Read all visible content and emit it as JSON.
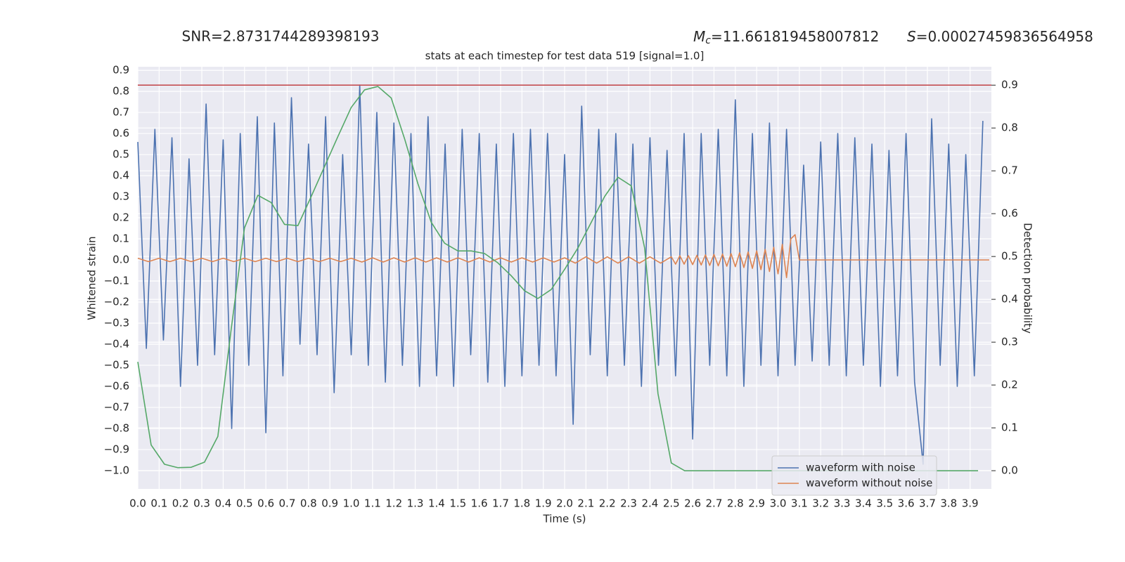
{
  "chart_data": {
    "type": "line",
    "title": "stats at each timestep for test data 519 [signal=1.0]",
    "annotations": [
      {
        "text": "SNR=2.8731744289398193"
      },
      {
        "symbol": "M",
        "sub": "c",
        "text": "=11.661819458007812"
      },
      {
        "symbol": "S",
        "text": "=0.00027459836564958"
      }
    ],
    "xlabel": "Time (s)",
    "ylabel": "Whitened strain",
    "y2label": "Detection probability",
    "xlim": [
      0,
      4.0
    ],
    "ylim": [
      -1.087,
      0.917
    ],
    "y2lim": [
      -0.0426,
      0.943
    ],
    "xticks": [
      {
        "value": 0,
        "label": "0.0"
      },
      0.1,
      0.2,
      0.3,
      0.4,
      0.5,
      0.6,
      0.7,
      0.8,
      0.9,
      {
        "value": 1,
        "label": "1.0"
      },
      1.1,
      1.2,
      1.3,
      1.4,
      1.5,
      1.6,
      1.7,
      1.8,
      1.9,
      {
        "value": 2,
        "label": "2.0"
      },
      2.1,
      2.2,
      2.3,
      2.4,
      2.5,
      2.6,
      2.7,
      2.8,
      2.9,
      {
        "value": 3,
        "label": "3.0"
      },
      3.1,
      3.2,
      3.3,
      3.4,
      3.5,
      3.6,
      3.7,
      3.8,
      3.9
    ],
    "yticks": [
      {
        "value": -1,
        "label": "−1.0"
      },
      {
        "value": -0.9,
        "label": "−0.9"
      },
      {
        "value": -0.8,
        "label": "−0.8"
      },
      {
        "value": -0.7,
        "label": "−0.7"
      },
      {
        "value": -0.6,
        "label": "−0.6"
      },
      {
        "value": -0.5,
        "label": "−0.5"
      },
      {
        "value": -0.4,
        "label": "−0.4"
      },
      {
        "value": -0.3,
        "label": "−0.3"
      },
      {
        "value": -0.2,
        "label": "−0.2"
      },
      {
        "value": -0.1,
        "label": "−0.1"
      },
      {
        "value": 0,
        "label": "0.0"
      },
      0.1,
      0.2,
      0.3,
      0.4,
      0.5,
      0.6,
      0.7,
      0.8,
      0.9
    ],
    "y2ticks": [
      {
        "value": 0,
        "label": "0.0"
      },
      0.1,
      0.2,
      0.3,
      0.4,
      0.5,
      0.6,
      0.7,
      0.8,
      0.9
    ],
    "grid": true,
    "legend": "lower right",
    "threshold": {
      "value": 0.9,
      "axis": "y2",
      "color": "#c44e52"
    },
    "series": [
      {
        "name": "waveform with noise",
        "color": "#4c72b0",
        "x": [
          0,
          0.04,
          0.08,
          0.12,
          0.16,
          0.2,
          0.24,
          0.28,
          0.32,
          0.36,
          0.4,
          0.44,
          0.48,
          0.52,
          0.56,
          0.6,
          0.64,
          0.68,
          0.72,
          0.76,
          0.8,
          0.84,
          0.88,
          0.92,
          0.96,
          1,
          1.04,
          1.08,
          1.12,
          1.16,
          1.2,
          1.24,
          1.28,
          1.32,
          1.36,
          1.4,
          1.44,
          1.48,
          1.52,
          1.56,
          1.6,
          1.64,
          1.68,
          1.72,
          1.76,
          1.8,
          1.84,
          1.88,
          1.92,
          1.96,
          2,
          2.04,
          2.08,
          2.12,
          2.16,
          2.2,
          2.24,
          2.28,
          2.32,
          2.36,
          2.4,
          2.44,
          2.48,
          2.52,
          2.56,
          2.6,
          2.64,
          2.68,
          2.72,
          2.76,
          2.8,
          2.84,
          2.88,
          2.92,
          2.96,
          3,
          3.04,
          3.08,
          3.12,
          3.16,
          3.2,
          3.24,
          3.28,
          3.32,
          3.36,
          3.4,
          3.44,
          3.48,
          3.52,
          3.56,
          3.6,
          3.64,
          3.68,
          3.72,
          3.76,
          3.8,
          3.84,
          3.88,
          3.92,
          3.96
        ],
        "values": [
          0.56,
          -0.42,
          0.62,
          -0.38,
          0.58,
          -0.6,
          0.48,
          -0.5,
          0.74,
          -0.45,
          0.57,
          -0.8,
          0.6,
          -0.5,
          0.68,
          -0.82,
          0.65,
          -0.55,
          0.77,
          -0.4,
          0.55,
          -0.45,
          0.68,
          -0.63,
          0.5,
          -0.45,
          0.83,
          -0.5,
          0.7,
          -0.58,
          0.65,
          -0.5,
          0.6,
          -0.6,
          0.68,
          -0.55,
          0.55,
          -0.6,
          0.62,
          -0.45,
          0.6,
          -0.58,
          0.55,
          -0.6,
          0.6,
          -0.55,
          0.62,
          -0.5,
          0.6,
          -0.55,
          0.5,
          -0.78,
          0.73,
          -0.45,
          0.62,
          -0.55,
          0.6,
          -0.5,
          0.55,
          -0.6,
          0.58,
          -0.5,
          0.52,
          -0.55,
          0.6,
          -0.85,
          0.6,
          -0.5,
          0.62,
          -0.55,
          0.76,
          -0.6,
          0.6,
          -0.5,
          0.65,
          -0.55,
          0.62,
          -0.5,
          0.45,
          -0.48,
          0.56,
          -0.5,
          0.6,
          -0.55,
          0.58,
          -0.5,
          0.55,
          -0.6,
          0.52,
          -0.55,
          0.6,
          -0.58,
          -0.97,
          0.67,
          -0.5,
          0.55,
          -0.6,
          0.5,
          -0.55,
          0.66
        ]
      },
      {
        "name": "waveform without noise",
        "color": "#dd8452",
        "x": [
          0,
          0.05,
          0.1,
          0.15,
          0.2,
          0.25,
          0.3,
          0.35,
          0.4,
          0.45,
          0.5,
          0.55,
          0.6,
          0.65,
          0.7,
          0.75,
          0.8,
          0.85,
          0.9,
          0.95,
          1,
          1.05,
          1.1,
          1.15,
          1.2,
          1.25,
          1.3,
          1.35,
          1.4,
          1.45,
          1.5,
          1.55,
          1.6,
          1.65,
          1.7,
          1.75,
          1.8,
          1.85,
          1.9,
          1.95,
          2,
          2.05,
          2.1,
          2.15,
          2.2,
          2.25,
          2.3,
          2.35,
          2.4,
          2.45,
          2.5,
          2.52,
          2.54,
          2.56,
          2.58,
          2.6,
          2.62,
          2.64,
          2.66,
          2.68,
          2.7,
          2.72,
          2.74,
          2.76,
          2.78,
          2.8,
          2.82,
          2.84,
          2.86,
          2.88,
          2.9,
          2.92,
          2.94,
          2.96,
          2.98,
          3,
          3.02,
          3.04,
          3.06,
          3.08,
          3.1,
          3.99
        ],
        "values": [
          0.008,
          -0.008,
          0.008,
          -0.008,
          0.008,
          -0.008,
          0.008,
          -0.008,
          0.008,
          -0.008,
          0.008,
          -0.008,
          0.008,
          -0.008,
          0.008,
          -0.008,
          0.008,
          -0.008,
          0.008,
          -0.008,
          0.008,
          -0.01,
          0.01,
          -0.01,
          0.01,
          -0.01,
          0.01,
          -0.01,
          0.01,
          -0.01,
          0.01,
          -0.01,
          0.01,
          -0.01,
          0.01,
          -0.01,
          0.01,
          -0.01,
          0.01,
          -0.01,
          0.01,
          -0.015,
          0.015,
          -0.015,
          0.015,
          -0.015,
          0.015,
          -0.015,
          0.015,
          -0.015,
          0.015,
          -0.02,
          0.02,
          -0.02,
          0.02,
          -0.022,
          0.022,
          -0.024,
          0.024,
          -0.026,
          0.026,
          -0.028,
          0.028,
          -0.03,
          0.03,
          -0.032,
          0.034,
          -0.036,
          0.038,
          -0.04,
          0.043,
          -0.046,
          0.05,
          -0.055,
          0.06,
          -0.066,
          0.074,
          -0.084,
          0.1,
          0.12,
          0,
          0
        ]
      },
      {
        "color": "#55a868",
        "axis": "y2",
        "x": [
          0,
          0.0625,
          0.125,
          0.1875,
          0.25,
          0.3125,
          0.375,
          0.4375,
          0.5,
          0.5625,
          0.625,
          0.6875,
          0.75,
          0.8125,
          0.875,
          0.9375,
          1,
          1.0625,
          1.125,
          1.1875,
          1.25,
          1.3125,
          1.375,
          1.4375,
          1.5,
          1.5625,
          1.625,
          1.6875,
          1.75,
          1.8125,
          1.875,
          1.9375,
          2,
          2.0625,
          2.125,
          2.1875,
          2.25,
          2.3125,
          2.375,
          2.4375,
          2.5,
          2.5625,
          2.625,
          2.6875,
          2.75,
          2.8125,
          2.875,
          2.9375,
          3,
          3.0625,
          3.125,
          3.1875,
          3.25,
          3.3125,
          3.375,
          3.4375,
          3.5,
          3.5625,
          3.625,
          3.6875,
          3.75,
          3.8125,
          3.875,
          3.9375
        ],
        "values": [
          0.254,
          0.06,
          0.015,
          0.007,
          0.008,
          0.02,
          0.08,
          0.33,
          0.567,
          0.643,
          0.626,
          0.575,
          0.572,
          0.64,
          0.71,
          0.78,
          0.848,
          0.889,
          0.897,
          0.87,
          0.775,
          0.67,
          0.58,
          0.531,
          0.513,
          0.513,
          0.507,
          0.485,
          0.455,
          0.42,
          0.402,
          0.423,
          0.47,
          0.52,
          0.58,
          0.64,
          0.685,
          0.665,
          0.52,
          0.18,
          0.018,
          0,
          0,
          0,
          0,
          0,
          0,
          0,
          0,
          0,
          0,
          0,
          0,
          0,
          0,
          0,
          0,
          0,
          0,
          0,
          0,
          0,
          0,
          0
        ]
      }
    ]
  }
}
